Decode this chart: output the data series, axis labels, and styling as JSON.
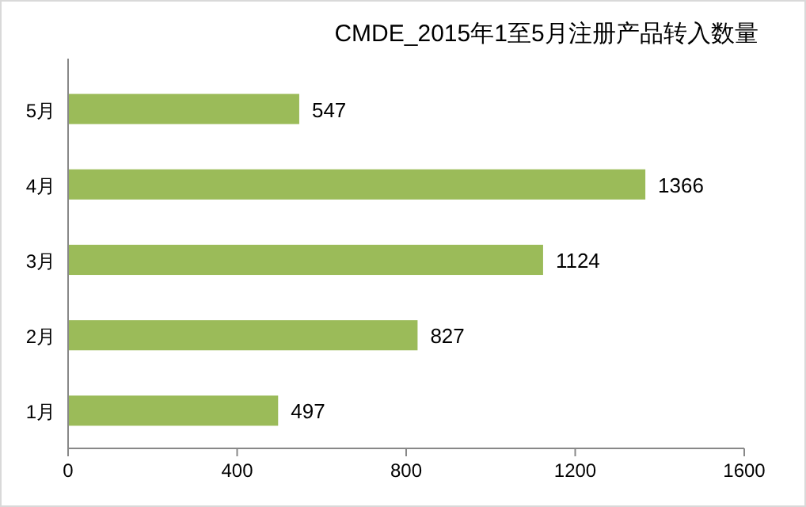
{
  "chart_data": {
    "type": "bar",
    "orientation": "horizontal",
    "title": "CMDE_2015年1至5月注册产品转入数量",
    "categories": [
      "5月",
      "4月",
      "3月",
      "2月",
      "1月"
    ],
    "values": [
      547,
      1366,
      1124,
      827,
      497
    ],
    "color": "#9bbb59",
    "data_labels": true,
    "xlim": [
      0,
      1600
    ],
    "xticks": [
      0,
      400,
      800,
      1200,
      1600
    ]
  }
}
